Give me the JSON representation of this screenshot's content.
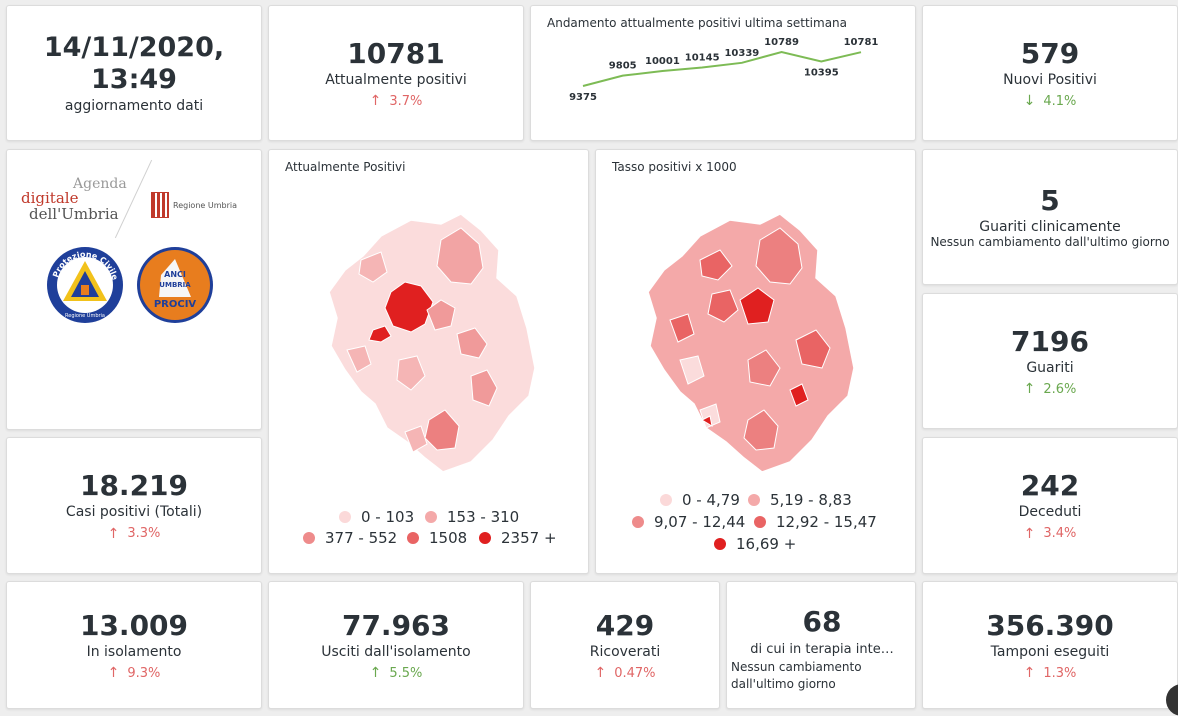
{
  "update": {
    "datetime": "14/11/2020, 13:49",
    "label": "aggiornamento dati"
  },
  "attualmente_positivi": {
    "value": "10781",
    "label": "Attualmente positivi",
    "delta": "3.7%",
    "direction": "up"
  },
  "trend": {
    "title": "Andamento attualmente positivi ultima settimana",
    "values": [
      9375,
      9805,
      10001,
      10145,
      10339,
      10789,
      10395,
      10781
    ],
    "labels": [
      "9375",
      "9805",
      "10001",
      "10145",
      "10339",
      "10789",
      "10395",
      "10781"
    ],
    "line_color": "#7dbb55"
  },
  "nuovi_positivi": {
    "value": "579",
    "label": "Nuovi Positivi",
    "delta": "4.1%",
    "direction": "down"
  },
  "logos": {
    "agenda_line1": "Agenda",
    "agenda_line2": "digitale",
    "agenda_line3": "dell'Umbria",
    "regione": "Regione Umbria",
    "protezione_top": "Protezione Civile",
    "protezione_bottom": "Regione Umbria",
    "anci_line1": "ANCI",
    "anci_line2": "UMBRIA",
    "anci_line3": "PROCIV"
  },
  "map1": {
    "title": "Attualmente Positivi",
    "legend": [
      {
        "label": "0 - 103",
        "color": "#fbd9d9"
      },
      {
        "label": "153 - 310",
        "color": "#f4a9a9"
      },
      {
        "label": "377 - 552",
        "color": "#ee8b8b"
      },
      {
        "label": "1508",
        "color": "#e96464"
      },
      {
        "label": "2357 +",
        "color": "#e02020"
      }
    ]
  },
  "map2": {
    "title": "Tasso positivi x 1000",
    "legend": [
      {
        "label": "0 - 4,79",
        "color": "#fbd9d9"
      },
      {
        "label": "5,19 - 8,83",
        "color": "#f4a9a9"
      },
      {
        "label": "9,07 - 12,44",
        "color": "#ee8b8b"
      },
      {
        "label": "12,92 - 15,47",
        "color": "#e96464"
      },
      {
        "label": "16,69 +",
        "color": "#e02020"
      }
    ]
  },
  "guariti_clinicamente": {
    "value": "5",
    "label": "Guariti clinicamente",
    "note": "Nessun cambiamento dall'ultimo giorno"
  },
  "guariti": {
    "value": "7196",
    "label": "Guariti",
    "delta": "2.6%",
    "direction": "down"
  },
  "casi_totali": {
    "value": "18.219",
    "label": "Casi positivi (Totali)",
    "delta": "3.3%",
    "direction": "up"
  },
  "deceduti": {
    "value": "242",
    "label": "Deceduti",
    "delta": "3.4%",
    "direction": "up"
  },
  "isolamento": {
    "value": "13.009",
    "label": "In isolamento",
    "delta": "9.3%",
    "direction": "up"
  },
  "usciti": {
    "value": "77.963",
    "label": "Usciti dall'isolamento",
    "delta": "5.5%",
    "direction": "down"
  },
  "ricoverati": {
    "value": "429",
    "label": "Ricoverati",
    "delta": "0.47%",
    "direction": "up"
  },
  "terapia": {
    "value": "68",
    "label": "di cui in terapia inte…",
    "note_line1": "Nessun cambiamento",
    "note_line2": "dall'ultimo giorno"
  },
  "tamponi": {
    "value": "356.390",
    "label": "Tamponi eseguiti",
    "delta": "1.3%",
    "direction": "up"
  },
  "colors": {
    "up": "#e06666",
    "down": "#6aa84f"
  }
}
